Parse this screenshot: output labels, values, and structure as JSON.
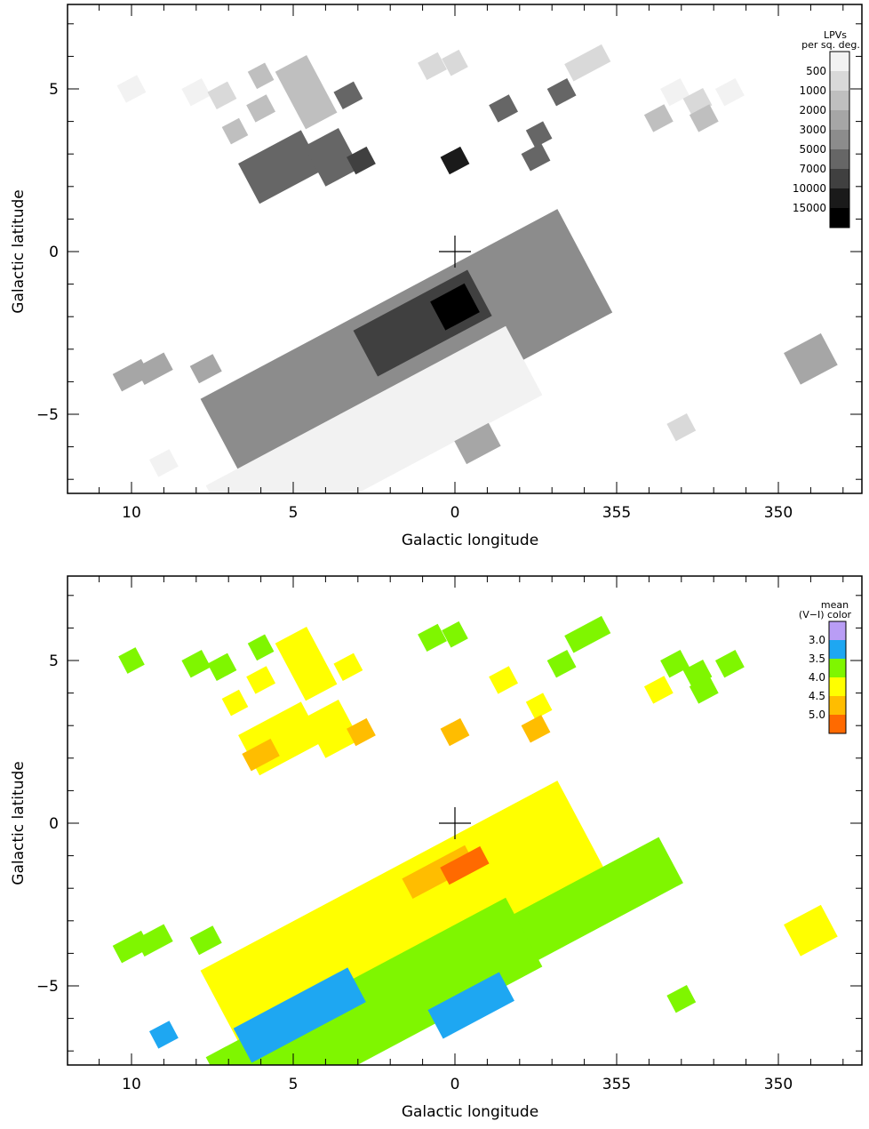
{
  "chart_data": [
    {
      "type": "heatmap",
      "title": "",
      "xlabel": "Galactic longitude",
      "ylabel": "Galactic latitude",
      "xlim": [
        12,
        -347
      ],
      "ylim": [
        -7.5,
        7.5
      ],
      "x_ticks": [
        10,
        5,
        0,
        355,
        350
      ],
      "y_ticks": [
        5,
        0,
        -5
      ],
      "marker": {
        "l": 0,
        "b": 0,
        "symbol": "+"
      },
      "legend": {
        "title_lines": [
          "LPVs",
          "per sq. deg."
        ],
        "placement": "top-right",
        "levels": [
          "500",
          "1000",
          "2000",
          "3000",
          "5000",
          "7000",
          "10000",
          "15000"
        ],
        "colors": [
          "#f2f2f2",
          "#d9d9d9",
          "#bfbfbf",
          "#a6a6a6",
          "#8c8c8c",
          "#666666",
          "#404040",
          "#1a1a1a",
          "#000000"
        ]
      },
      "regions": [
        {
          "l": 10.0,
          "b": 5.0,
          "w": 0.7,
          "h": 0.6,
          "level": 0
        },
        {
          "l": 8.0,
          "b": 4.9,
          "w": 0.7,
          "h": 0.6,
          "level": 0
        },
        {
          "l": 7.2,
          "b": 4.8,
          "w": 0.7,
          "h": 0.6,
          "level": 1
        },
        {
          "l": 6.8,
          "b": 3.7,
          "w": 0.6,
          "h": 0.6,
          "level": 2
        },
        {
          "l": 6.0,
          "b": 5.4,
          "w": 0.6,
          "h": 0.6,
          "level": 2
        },
        {
          "l": 6.0,
          "b": 4.4,
          "w": 0.7,
          "h": 0.6,
          "level": 2
        },
        {
          "l": 4.6,
          "b": 4.9,
          "w": 1.1,
          "h": 2.0,
          "level": 2
        },
        {
          "l": 3.3,
          "b": 4.8,
          "w": 0.7,
          "h": 0.6,
          "level": 5
        },
        {
          "l": 5.4,
          "b": 2.6,
          "w": 2.2,
          "h": 1.4,
          "level": 5
        },
        {
          "l": 3.8,
          "b": 2.9,
          "w": 1.2,
          "h": 1.4,
          "level": 5
        },
        {
          "l": 2.9,
          "b": 2.8,
          "w": 0.7,
          "h": 0.6,
          "level": 6
        },
        {
          "l": 0.7,
          "b": 5.7,
          "w": 0.7,
          "h": 0.6,
          "level": 1
        },
        {
          "l": 0.0,
          "b": 5.8,
          "w": 0.6,
          "h": 0.6,
          "level": 1
        },
        {
          "l": 0.0,
          "b": 2.8,
          "w": 0.7,
          "h": 0.6,
          "level": 7
        },
        {
          "l": -1.5,
          "b": 4.4,
          "w": 0.7,
          "h": 0.6,
          "level": 5
        },
        {
          "l": -3.3,
          "b": 4.9,
          "w": 0.7,
          "h": 0.6,
          "level": 5
        },
        {
          "l": -2.6,
          "b": 3.6,
          "w": 0.6,
          "h": 0.6,
          "level": 5
        },
        {
          "l": -2.5,
          "b": 2.9,
          "w": 0.7,
          "h": 0.6,
          "level": 5
        },
        {
          "l": -4.1,
          "b": 5.8,
          "w": 1.3,
          "h": 0.6,
          "level": 1
        },
        {
          "l": -6.8,
          "b": 4.9,
          "w": 0.7,
          "h": 0.6,
          "level": 0
        },
        {
          "l": -6.3,
          "b": 4.1,
          "w": 0.7,
          "h": 0.6,
          "level": 2
        },
        {
          "l": -7.5,
          "b": 4.6,
          "w": 0.7,
          "h": 0.6,
          "level": 1
        },
        {
          "l": -8.5,
          "b": 4.9,
          "w": 0.7,
          "h": 0.6,
          "level": 0
        },
        {
          "l": -7.7,
          "b": 4.1,
          "w": 0.7,
          "h": 0.6,
          "level": 2
        },
        {
          "l": 10.0,
          "b": -3.8,
          "w": 1.0,
          "h": 0.6,
          "level": 3
        },
        {
          "l": 9.3,
          "b": -3.6,
          "w": 1.0,
          "h": 0.6,
          "level": 3
        },
        {
          "l": 7.7,
          "b": -3.6,
          "w": 0.8,
          "h": 0.6,
          "level": 3
        },
        {
          "l": 9.0,
          "b": -6.5,
          "w": 0.7,
          "h": 0.6,
          "level": 0
        },
        {
          "l": 1.5,
          "b": -3.2,
          "w": 12.5,
          "h": 3.6,
          "level": 4
        },
        {
          "l": 1.0,
          "b": -2.2,
          "w": 4.0,
          "h": 1.6,
          "level": 6
        },
        {
          "l": 0.0,
          "b": -1.7,
          "w": 1.2,
          "h": 1.0,
          "level": 8
        },
        {
          "l": 2.5,
          "b": -5.8,
          "w": 10.5,
          "h": 2.4,
          "level": 0
        },
        {
          "l": -0.7,
          "b": -5.9,
          "w": 1.2,
          "h": 0.8,
          "level": 3
        },
        {
          "l": -7.0,
          "b": -5.4,
          "w": 0.7,
          "h": 0.6,
          "level": 1
        },
        {
          "l": -11.0,
          "b": -3.3,
          "w": 1.3,
          "h": 1.1,
          "level": 3
        }
      ]
    },
    {
      "type": "heatmap",
      "title": "",
      "xlabel": "Galactic longitude",
      "ylabel": "Galactic latitude",
      "xlim": [
        12,
        -347
      ],
      "ylim": [
        -7.5,
        7.5
      ],
      "x_ticks": [
        10,
        5,
        0,
        355,
        350
      ],
      "y_ticks": [
        5,
        0,
        -5
      ],
      "marker": {
        "l": 0,
        "b": 0,
        "symbol": "+"
      },
      "legend": {
        "title_lines": [
          "mean",
          "(V−I)  color"
        ],
        "placement": "top-right",
        "levels": [
          "3.0",
          "3.5",
          "4.0",
          "4.5",
          "5.0"
        ],
        "colors": [
          "#b99df5",
          "#1ea7f2",
          "#7ff600",
          "#ffff00",
          "#ffbd00",
          "#ff6a00"
        ]
      },
      "regions": [
        {
          "l": 10.0,
          "b": 5.0,
          "w": 0.6,
          "h": 0.6,
          "level": 2
        },
        {
          "l": 8.0,
          "b": 4.9,
          "w": 0.7,
          "h": 0.6,
          "level": 2
        },
        {
          "l": 7.2,
          "b": 4.8,
          "w": 0.7,
          "h": 0.6,
          "level": 2
        },
        {
          "l": 6.8,
          "b": 3.7,
          "w": 0.6,
          "h": 0.6,
          "level": 3
        },
        {
          "l": 6.0,
          "b": 5.4,
          "w": 0.6,
          "h": 0.6,
          "level": 2
        },
        {
          "l": 6.0,
          "b": 4.4,
          "w": 0.7,
          "h": 0.6,
          "level": 3
        },
        {
          "l": 4.6,
          "b": 4.9,
          "w": 1.1,
          "h": 2.0,
          "level": 3
        },
        {
          "l": 3.3,
          "b": 4.8,
          "w": 0.7,
          "h": 0.6,
          "level": 3
        },
        {
          "l": 5.4,
          "b": 2.6,
          "w": 2.2,
          "h": 1.4,
          "level": 3
        },
        {
          "l": 6.0,
          "b": 2.1,
          "w": 1.0,
          "h": 0.6,
          "level": 4
        },
        {
          "l": 3.8,
          "b": 2.9,
          "w": 1.2,
          "h": 1.4,
          "level": 3
        },
        {
          "l": 2.9,
          "b": 2.8,
          "w": 0.7,
          "h": 0.6,
          "level": 4
        },
        {
          "l": 0.7,
          "b": 5.7,
          "w": 0.7,
          "h": 0.6,
          "level": 2
        },
        {
          "l": 0.0,
          "b": 5.8,
          "w": 0.6,
          "h": 0.6,
          "level": 2
        },
        {
          "l": 0.0,
          "b": 2.8,
          "w": 0.7,
          "h": 0.6,
          "level": 4
        },
        {
          "l": -1.5,
          "b": 4.4,
          "w": 0.7,
          "h": 0.6,
          "level": 3
        },
        {
          "l": -3.3,
          "b": 4.9,
          "w": 0.7,
          "h": 0.6,
          "level": 2
        },
        {
          "l": -2.6,
          "b": 3.6,
          "w": 0.6,
          "h": 0.6,
          "level": 3
        },
        {
          "l": -2.5,
          "b": 2.9,
          "w": 0.7,
          "h": 0.6,
          "level": 4
        },
        {
          "l": -4.1,
          "b": 5.8,
          "w": 1.3,
          "h": 0.6,
          "level": 2
        },
        {
          "l": -6.8,
          "b": 4.9,
          "w": 0.7,
          "h": 0.6,
          "level": 2
        },
        {
          "l": -6.3,
          "b": 4.1,
          "w": 0.7,
          "h": 0.6,
          "level": 3
        },
        {
          "l": -7.5,
          "b": 4.6,
          "w": 0.7,
          "h": 0.6,
          "level": 2
        },
        {
          "l": -8.5,
          "b": 4.9,
          "w": 0.7,
          "h": 0.6,
          "level": 2
        },
        {
          "l": -7.7,
          "b": 4.1,
          "w": 0.7,
          "h": 0.6,
          "level": 2
        },
        {
          "l": 10.0,
          "b": -3.8,
          "w": 1.0,
          "h": 0.6,
          "level": 2
        },
        {
          "l": 9.3,
          "b": -3.6,
          "w": 1.0,
          "h": 0.6,
          "level": 2
        },
        {
          "l": 7.7,
          "b": -3.6,
          "w": 0.8,
          "h": 0.6,
          "level": 2
        },
        {
          "l": 9.0,
          "b": -6.5,
          "w": 0.7,
          "h": 0.6,
          "level": 1
        },
        {
          "l": 1.5,
          "b": -3.2,
          "w": 12.5,
          "h": 3.6,
          "level": 3
        },
        {
          "l": -0.5,
          "b": -4.4,
          "w": 14.0,
          "h": 1.6,
          "level": 2
        },
        {
          "l": 1.0,
          "b": -2.2,
          "w": 4.0,
          "h": 1.6,
          "level": 3
        },
        {
          "l": 0.5,
          "b": -1.5,
          "w": 2.2,
          "h": 0.7,
          "level": 4
        },
        {
          "l": -0.3,
          "b": -1.3,
          "w": 1.4,
          "h": 0.6,
          "level": 5
        },
        {
          "l": 2.5,
          "b": -5.8,
          "w": 10.5,
          "h": 2.4,
          "level": 2
        },
        {
          "l": 4.8,
          "b": -5.9,
          "w": 4.0,
          "h": 1.2,
          "level": 1
        },
        {
          "l": -0.5,
          "b": -5.6,
          "w": 2.5,
          "h": 1.0,
          "level": 1
        },
        {
          "l": -7.0,
          "b": -5.4,
          "w": 0.7,
          "h": 0.6,
          "level": 2
        },
        {
          "l": -11.0,
          "b": -3.3,
          "w": 1.3,
          "h": 1.1,
          "level": 3
        }
      ]
    }
  ]
}
